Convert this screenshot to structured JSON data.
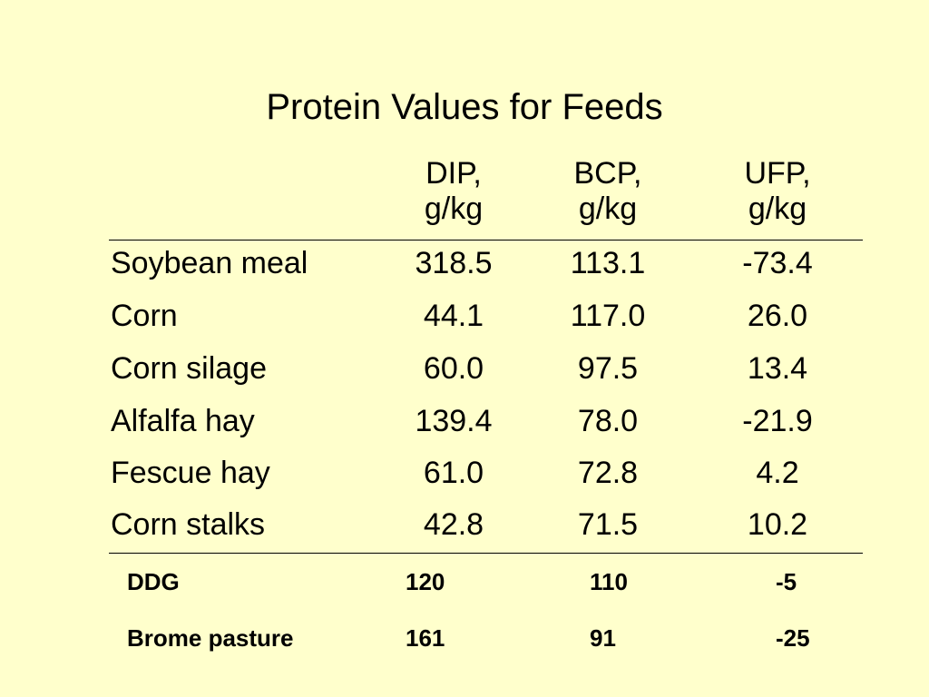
{
  "title": "Protein Values for Feeds",
  "columns": [
    {
      "line1": "DIP,",
      "line2": "g/kg"
    },
    {
      "line1": "BCP,",
      "line2": "g/kg"
    },
    {
      "line1": "UFP,",
      "line2": "g/kg"
    }
  ],
  "rows": [
    {
      "name": "Soybean meal",
      "dip": "318.5",
      "bcp": "113.1",
      "ufp": "-73.4"
    },
    {
      "name": "Corn",
      "dip": "44.1",
      "bcp": "117.0",
      "ufp": "26.0"
    },
    {
      "name": "Corn silage",
      "dip": "60.0",
      "bcp": "97.5",
      "ufp": "13.4"
    },
    {
      "name": "Alfalfa hay",
      "dip": "139.4",
      "bcp": "78.0",
      "ufp": "-21.9"
    },
    {
      "name": "Fescue hay",
      "dip": "61.0",
      "bcp": "72.8",
      "ufp": "4.2"
    },
    {
      "name": "Corn stalks",
      "dip": "42.8",
      "bcp": "71.5",
      "ufp": "10.2"
    }
  ],
  "extra_rows": [
    {
      "name": "DDG",
      "dip": "120",
      "bcp": "110",
      "ufp": "-5"
    },
    {
      "name": "Brome pasture",
      "dip": "161",
      "bcp": "91",
      "ufp": "-25"
    }
  ]
}
